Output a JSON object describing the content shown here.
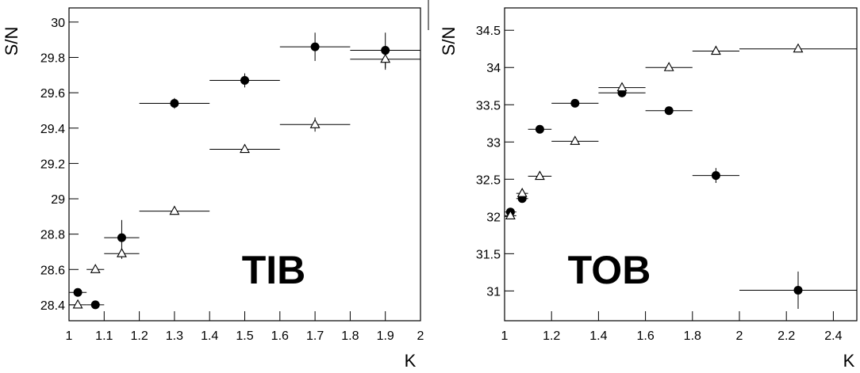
{
  "chart_data": [
    {
      "type": "scatter",
      "text_label": "TIB",
      "y_label": "S/N",
      "x_label": "K",
      "xlim": [
        1,
        2
      ],
      "ylim": [
        28.31,
        30.08
      ],
      "xticks": [
        1,
        1.1,
        1.2,
        1.3,
        1.4,
        1.5,
        1.6,
        1.7,
        1.8,
        1.9,
        2
      ],
      "yticks": [
        28.4,
        28.6,
        28.8,
        29,
        29.2,
        29.4,
        29.6,
        29.8,
        30
      ],
      "x": [
        1.025,
        1.075,
        1.15,
        1.3,
        1.5,
        1.7,
        1.9
      ],
      "xerr": [
        0.025,
        0.025,
        0.05,
        0.1,
        0.1,
        0.1,
        0.1
      ],
      "series": [
        {
          "marker": "circle",
          "color": "#000000",
          "values": [
            28.47,
            28.4,
            28.78,
            29.54,
            29.67,
            29.86,
            29.84
          ],
          "yerr": [
            0.01,
            0.01,
            0.1,
            0.03,
            0.04,
            0.08,
            0.1
          ]
        },
        {
          "marker": "triangle",
          "color": "#000000",
          "values": [
            28.4,
            28.6,
            28.69,
            28.93,
            29.28,
            29.42,
            29.79
          ],
          "yerr": [
            0.01,
            0.01,
            0.03,
            0.02,
            0.02,
            0.04,
            0.06
          ]
        }
      ]
    },
    {
      "type": "scatter",
      "text_label": "TOB",
      "y_label": "S/N",
      "x_label": "K",
      "xlim": [
        1,
        2.5
      ],
      "ylim": [
        30.6,
        34.8
      ],
      "xticks": [
        1,
        1.2,
        1.4,
        1.6,
        1.8,
        2,
        2.2,
        2.4
      ],
      "yticks": [
        31,
        31.5,
        32,
        32.5,
        33,
        33.5,
        34,
        34.5
      ],
      "x": [
        1.025,
        1.075,
        1.15,
        1.3,
        1.5,
        1.7,
        1.9,
        2.25
      ],
      "xerr": [
        0.025,
        0.025,
        0.05,
        0.1,
        0.1,
        0.1,
        0.1,
        0.25
      ],
      "series": [
        {
          "marker": "circle",
          "color": "#000000",
          "values": [
            32.06,
            32.24,
            33.17,
            33.52,
            33.66,
            33.42,
            32.55,
            31.01
          ],
          "yerr": [
            0.04,
            0.05,
            0.05,
            0.04,
            0.06,
            0.04,
            0.1,
            0.25
          ]
        },
        {
          "marker": "triangle",
          "color": "#000000",
          "values": [
            32.01,
            32.31,
            32.54,
            33.01,
            33.73,
            34.0,
            34.22,
            34.25
          ],
          "yerr": [
            0.03,
            0.05,
            0.04,
            0.04,
            0.06,
            0.05,
            0.04,
            0.04
          ]
        }
      ]
    }
  ]
}
